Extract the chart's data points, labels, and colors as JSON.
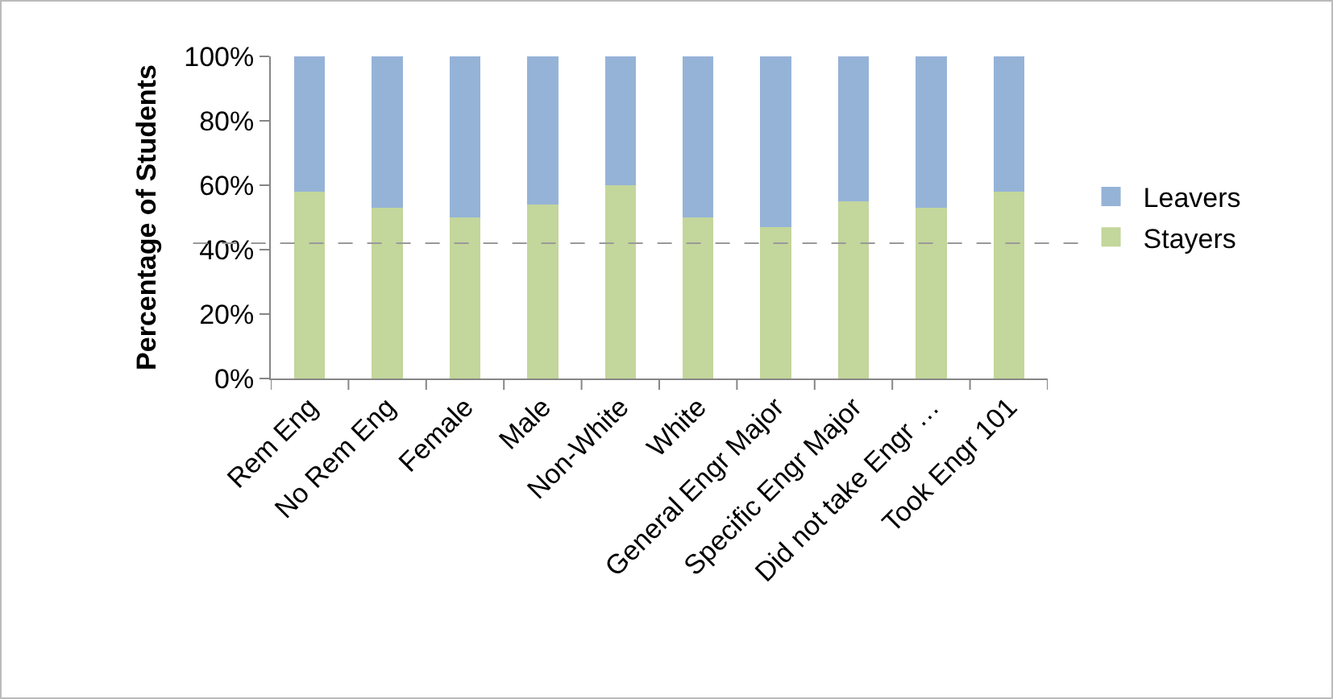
{
  "chart_data": {
    "type": "bar",
    "stacked": true,
    "ylabel": "Percentage of Students",
    "categories": [
      "Rem Eng",
      "No Rem Eng",
      "Female",
      "Male",
      "Non-White",
      "White",
      "General Engr Major",
      "Specific Engr Major",
      "Did not take Engr …",
      "Took Engr 101"
    ],
    "series": [
      {
        "name": "Stayers",
        "color": "#c3d69b",
        "values": [
          58,
          53,
          50,
          54,
          60,
          50,
          47,
          55,
          53,
          58
        ]
      },
      {
        "name": "Leavers",
        "color": "#95b3d7",
        "values": [
          42,
          47,
          50,
          46,
          40,
          50,
          53,
          45,
          47,
          42
        ]
      }
    ],
    "ylim": [
      0,
      100
    ],
    "yticks": [
      {
        "value": 0,
        "label": "0%"
      },
      {
        "value": 20,
        "label": "20%"
      },
      {
        "value": 40,
        "label": "40%"
      },
      {
        "value": 60,
        "label": "60%"
      },
      {
        "value": 80,
        "label": "80%"
      },
      {
        "value": 100,
        "label": "100%"
      }
    ],
    "ref_lines": [
      {
        "axis": "y",
        "value": 42,
        "color": "#999999",
        "line_style": "dashed"
      }
    ],
    "grid": false,
    "legend": "right"
  }
}
